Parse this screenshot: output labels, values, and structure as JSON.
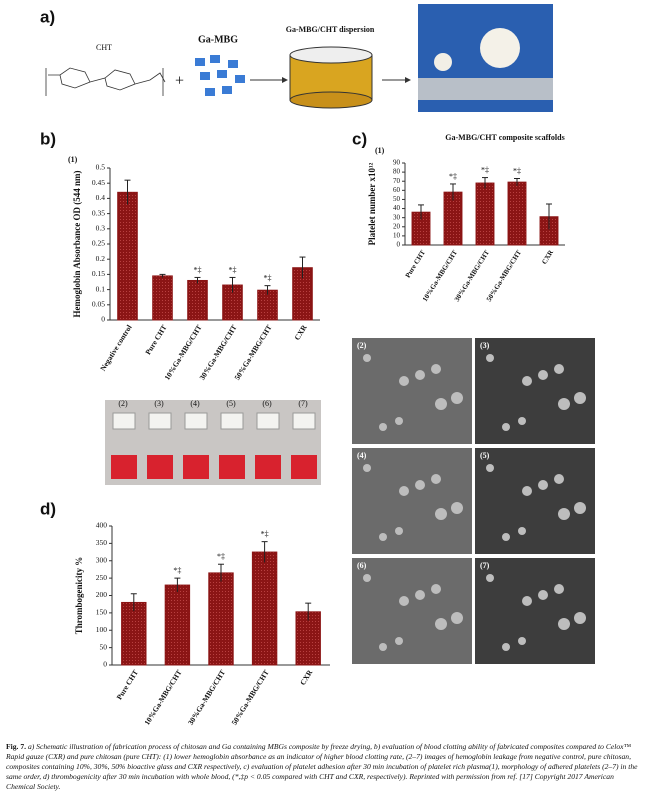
{
  "panel_labels": [
    "a)",
    "b)",
    "c)",
    "d)"
  ],
  "schematic": {
    "cht": "CHT",
    "plus": "+",
    "ga_mbg": "Ga-MBG",
    "dispersion": "Ga-MBG/CHT dispersion"
  },
  "vial_labels": [
    "(2)",
    "(3)",
    "(4)",
    "(5)",
    "(6)",
    "(7)"
  ],
  "sem_labels": [
    "(2)",
    "(3)",
    "(4)",
    "(5)",
    "(6)",
    "(7)"
  ],
  "chart_data": [
    {
      "type": "bar",
      "title": "(1)",
      "y_label": "Hemoglobin Absorbance OD (544 nm)",
      "categories": [
        "Negative control",
        "Pure CHT",
        "10%Ga-MBG/CHT",
        "30%Ga-MBG/CHT",
        "50%Ga-MBG/CHT",
        "CXR"
      ],
      "values": [
        0.42,
        0.145,
        0.13,
        0.115,
        0.098,
        0.172
      ],
      "errors": [
        0.04,
        0.005,
        0.01,
        0.025,
        0.015,
        0.035
      ],
      "sig_labels": [
        null,
        null,
        "*‡",
        "*‡",
        "*‡",
        null
      ],
      "color": "#8b1515",
      "ylim": [
        0,
        0.5
      ],
      "yticks": [
        0,
        0.05,
        0.1,
        0.15,
        0.2,
        0.25,
        0.3,
        0.35,
        0.4,
        0.45,
        0.5
      ]
    },
    {
      "type": "bar",
      "title": "Ga-MBG/CHT composite scaffolds",
      "subtitle": "(1)",
      "y_label": "Platelet number x10¹²",
      "categories": [
        "Pure CHT",
        "10%Ga-MBG/CHT",
        "30%Ga-MBG/CHT",
        "50%Ga-MBG/CHT",
        "CXR"
      ],
      "values": [
        36,
        58,
        68,
        69,
        31
      ],
      "errors": [
        8,
        9,
        6,
        4,
        14
      ],
      "sig_labels": [
        null,
        "*‡",
        "*‡",
        "*‡",
        null
      ],
      "color": "#8b1515",
      "ylim": [
        0,
        90
      ],
      "yticks": [
        0,
        10,
        20,
        30,
        40,
        50,
        60,
        70,
        80,
        90
      ]
    },
    {
      "type": "bar",
      "y_label": "Thrombogenicity %",
      "categories": [
        "Pure CHT",
        "10%Ga-MBG/CHT",
        "30%Ga-MBG/CHT",
        "50%Ga-MBG/CHT",
        "CXR"
      ],
      "values": [
        180,
        230,
        265,
        325,
        153
      ],
      "errors": [
        25,
        20,
        25,
        30,
        25
      ],
      "sig_labels": [
        null,
        "*‡",
        "*‡",
        "*‡",
        null
      ],
      "color": "#8b1515",
      "ylim": [
        0,
        400
      ],
      "yticks": [
        0,
        50,
        100,
        150,
        200,
        250,
        300,
        350,
        400
      ]
    }
  ],
  "caption": {
    "label": "Fig. 7.",
    "text": "a) Schematic illustration of fabrication process of chitosan and Ga containing MBGs composite by freeze drying, b) evaluation of blood clotting ability of fabricated composites compared to Celox™ Rapid gauze (CXR) and pure chitosan (pure CHT): (1) lower hemoglobin absorbance as an indicator of higher blood clotting rate, (2–7) images of hemoglobin leakage from negative control, pure chitosan, composites containing 10%, 30%, 50% bioactive glass and CXR respectively, c) evaluation of platelet adhesion after 30 min incubation of platelet rich plasma(1), morphology of adhered platelets (2–7) in the same order, d) thrombogenicity after 30 min incubation with whole blood, (*,‡p < 0.05 compared with CHT and CXR, respectively). Reprinted with permission from ref. [17] Copyright 2017 American Chemical Society."
  }
}
